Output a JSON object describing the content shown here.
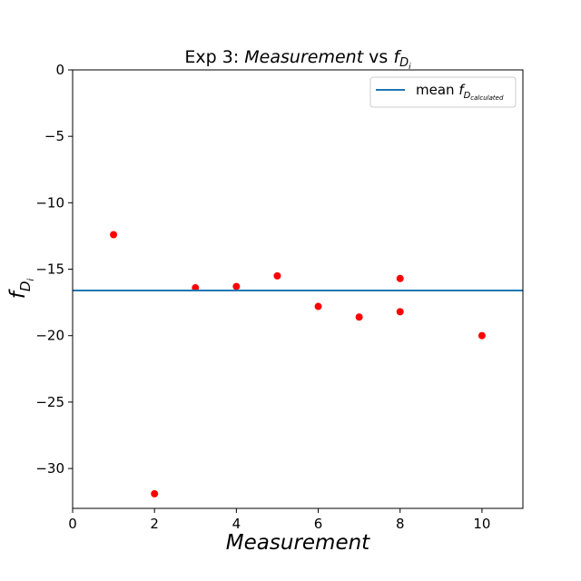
{
  "chart_data": {
    "type": "scatter",
    "title": {
      "prefix": "Exp 3: ",
      "italic": "Measurement",
      "middle": " vs ",
      "symbol": "f",
      "sub": "D",
      "subsub": "i"
    },
    "xlabel": "Measurement",
    "ylabel": {
      "symbol": "f",
      "sub": "D",
      "subsub": "i"
    },
    "xlim": [
      0,
      11
    ],
    "ylim": [
      -33,
      0
    ],
    "xticks": [
      0,
      2,
      4,
      6,
      8,
      10
    ],
    "xtick_labels": [
      "0",
      "2",
      "4",
      "6",
      "8",
      "10"
    ],
    "yticks": [
      0,
      -5,
      -10,
      -15,
      -20,
      -25,
      -30
    ],
    "ytick_labels": [
      "0",
      "−5",
      "−10",
      "−15",
      "−20",
      "−25",
      "−30"
    ],
    "grid": false,
    "legend_position": "top-right",
    "series": [
      {
        "kind": "scatter",
        "color": "#ff0000",
        "points": [
          {
            "x": 1,
            "y": -12.4
          },
          {
            "x": 2,
            "y": -31.9
          },
          {
            "x": 3,
            "y": -16.4
          },
          {
            "x": 4,
            "y": -16.3
          },
          {
            "x": 5,
            "y": -15.5
          },
          {
            "x": 6,
            "y": -17.8
          },
          {
            "x": 7,
            "y": -18.6
          },
          {
            "x": 8,
            "y": -15.7
          },
          {
            "x": 8,
            "y": -18.2
          },
          {
            "x": 10,
            "y": -20.0
          }
        ]
      },
      {
        "kind": "hline",
        "color": "#1f77b4",
        "y": -16.6,
        "legend": {
          "prefix": "mean ",
          "symbol": "f",
          "sub": "D",
          "subsub": "calculated"
        }
      }
    ]
  }
}
